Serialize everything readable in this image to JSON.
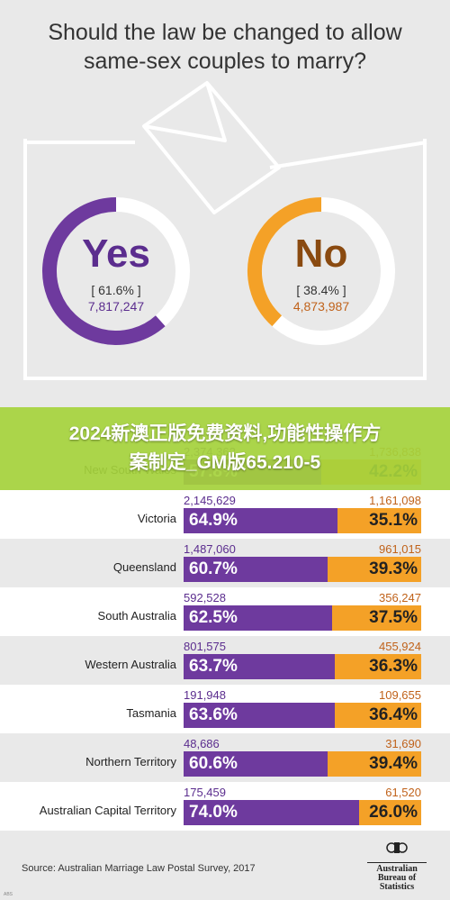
{
  "title_line1": "Should the law be changed to allow",
  "title_line2": "same-sex couples to marry?",
  "yes": {
    "label": "Yes",
    "pct": "[ 61.6% ]",
    "count": "7,817,247",
    "value": 61.6,
    "color": "#6e3a9e"
  },
  "no": {
    "label": "No",
    "pct": "[ 38.4% ]",
    "count": "4,873,987",
    "value": 38.4,
    "color": "#f4a127"
  },
  "overlay_banner": {
    "line1": "2024新澳正版免费资料,功能性操作方",
    "line2": "案制定_GM版65.210-5"
  },
  "chart_data": {
    "type": "bar",
    "stacked": true,
    "orientation": "horizontal",
    "title": "Should the law be changed to allow same-sex couples to marry?",
    "categories": [
      "New South Wales",
      "Victoria",
      "Queensland",
      "South Australia",
      "Western Australia",
      "Tasmania",
      "Northern Territory",
      "Australian Capital Territory"
    ],
    "series": [
      {
        "name": "Yes",
        "color": "#6e3a9e",
        "values": [
          57.8,
          64.9,
          60.7,
          62.5,
          63.7,
          63.6,
          60.6,
          74.0
        ],
        "labels": [
          "57.8%",
          "64.9%",
          "60.7%",
          "62.5%",
          "63.7%",
          "63.6%",
          "60.6%",
          "74.0%"
        ],
        "counts": [
          "2,374,362",
          "2,145,629",
          "1,487,060",
          "592,528",
          "801,575",
          "191,948",
          "48,686",
          "175,459"
        ]
      },
      {
        "name": "No",
        "color": "#f4a127",
        "values": [
          42.2,
          35.1,
          39.3,
          37.5,
          36.3,
          36.4,
          39.4,
          26.0
        ],
        "labels": [
          "42.2%",
          "35.1%",
          "39.3%",
          "37.5%",
          "36.3%",
          "36.4%",
          "39.4%",
          "26.0%"
        ],
        "counts": [
          "1,736,838",
          "1,161,098",
          "961,015",
          "356,247",
          "455,924",
          "109,655",
          "31,690",
          "61,520"
        ]
      }
    ]
  },
  "source": "Source: Australian Marriage Law Postal Survey, 2017",
  "logo": {
    "line1": "Australian",
    "line2": "Bureau of",
    "line3": "Statistics"
  },
  "corner_tag": "ABS"
}
